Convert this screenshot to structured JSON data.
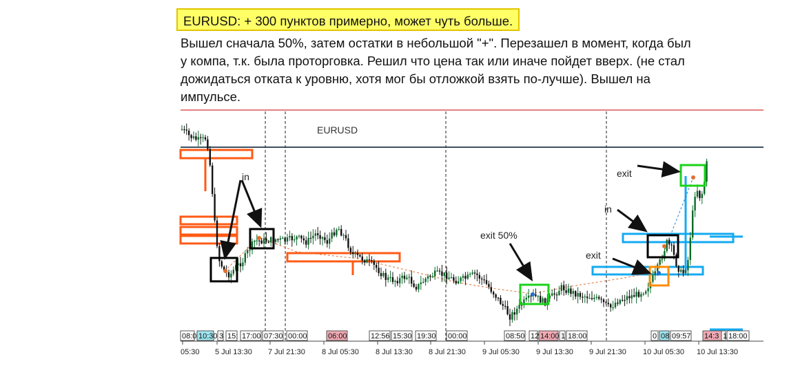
{
  "header": {
    "highlight": "EURUSD: + 300 пунктов примерно, может чуть больше.",
    "lines": [
      "Вышел сначала 50%, затем остатки в небольшой \"+\". Перезашел в момент, когда был",
      "у компа, т.к. была проторговка. Решил что цена так или иначе пойдет вверх. (не стал",
      "дожидаться отката к уровню, хотя мог бы отложкой взять по-лучше). Вышел на",
      "импульсе."
    ]
  },
  "chart_data": {
    "type": "candlestick",
    "symbol": "EURUSD",
    "x_ticks": [
      "05:30",
      "5 Jul 13:30",
      "7 Jul 21:30",
      "8 Jul 05:30",
      "8 Jul 13:30",
      "8 Jul 21:30",
      "9 Jul 05:30",
      "9 Jul 13:30",
      "9 Jul 21:30",
      "10 Jul 05:30",
      "10 Jul 13:30"
    ],
    "session_labels": [
      {
        "text": "08:0",
        "highlight": "none"
      },
      {
        "text": "10:30",
        "highlight": "cyan"
      },
      {
        "text": "3",
        "highlight": "none"
      },
      {
        "text": "15:",
        "highlight": "none"
      },
      {
        "text": "17:00",
        "highlight": "none"
      },
      {
        "text": "07:30",
        "highlight": "none"
      },
      {
        "text": "00:00",
        "highlight": "none"
      },
      {
        "text": "06:00",
        "highlight": "pink"
      },
      {
        "text": "12:56",
        "highlight": "none"
      },
      {
        "text": "15:30",
        "highlight": "none"
      },
      {
        "text": "19:30",
        "highlight": "none"
      },
      {
        "text": "00:00",
        "highlight": "none"
      },
      {
        "text": "08:50",
        "highlight": "none"
      },
      {
        "text": "12",
        "highlight": "none"
      },
      {
        "text": "14:00",
        "highlight": "pink"
      },
      {
        "text": "1",
        "highlight": "none"
      },
      {
        "text": "18:00",
        "highlight": "none"
      },
      {
        "text": "0",
        "highlight": "none"
      },
      {
        "text": "08",
        "highlight": "cyan"
      },
      {
        "text": "09:57",
        "highlight": "none"
      },
      {
        "text": "14:3",
        "highlight": "pink"
      },
      {
        "text": "1",
        "highlight": "none"
      },
      {
        "text": "18:00",
        "highlight": "none"
      }
    ],
    "annotations": [
      {
        "text": "in",
        "marker": "entry"
      },
      {
        "text": "exit 50%",
        "marker": "partial-exit"
      },
      {
        "text": "exit",
        "marker": "exit"
      },
      {
        "text": "in",
        "marker": "re-entry"
      },
      {
        "text": "exit",
        "marker": "final-exit"
      }
    ],
    "colors": {
      "bull": "#0c6b28",
      "bear": "#111111",
      "orange_zone": "#ff5a14",
      "blue_zone": "#14aaf0",
      "resistance": "#cc0000",
      "price_line": "#3c5060",
      "green_box": "#19d219",
      "black_box": "#000000",
      "orange_box": "#ff8c00",
      "pink": "#f0aab4",
      "cyan": "#a0e6f0"
    }
  }
}
